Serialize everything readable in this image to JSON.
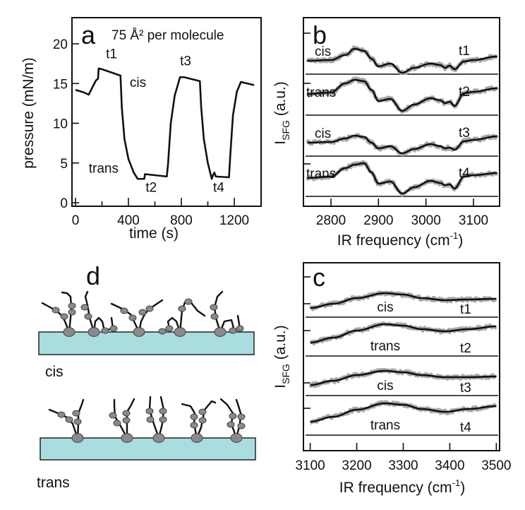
{
  "chart_data": [
    {
      "panel": "a",
      "type": "line",
      "annotation": "75 Å² per molecule",
      "xlabel": "time (s)",
      "ylabel": "pressure (mN/m)",
      "xlim": [
        0,
        1400
      ],
      "ylim": [
        0,
        23.3
      ],
      "xticks": [
        0,
        400,
        800,
        1200
      ],
      "xminor": [
        200,
        600,
        1000
      ],
      "yticks": [
        0,
        5,
        10,
        15,
        20
      ],
      "grid": false,
      "x": [
        0,
        60,
        100,
        130,
        155,
        170,
        175,
        200,
        340,
        350,
        370,
        400,
        440,
        470,
        520,
        525,
        690,
        700,
        720,
        750,
        790,
        820,
        940,
        950,
        970,
        1000,
        1030,
        1040,
        1050,
        1060,
        1160,
        1170,
        1190,
        1220,
        1250,
        1350
      ],
      "y": [
        14.2,
        13.9,
        13.6,
        14.6,
        15.4,
        15.6,
        16.9,
        16.8,
        16.0,
        12,
        8,
        5.5,
        3.8,
        3.0,
        3.0,
        3.6,
        3.3,
        5,
        10,
        13.5,
        15.8,
        15.8,
        15.3,
        12,
        8,
        5,
        3.0,
        3.5,
        3.8,
        3.3,
        3.2,
        6,
        11,
        14,
        15.2,
        14.8
      ],
      "labels": [
        {
          "text": "t1",
          "x": 230,
          "y": 18.2
        },
        {
          "text": "cis",
          "x": 410,
          "y": 14.6
        },
        {
          "text": "t3",
          "x": 790,
          "y": 17.3
        },
        {
          "text": "trans",
          "x": 100,
          "y": 3.8
        },
        {
          "text": "t2",
          "x": 530,
          "y": 1.4
        },
        {
          "text": "t4",
          "x": 1040,
          "y": 1.4
        }
      ]
    },
    {
      "panel": "b",
      "type": "line",
      "xlabel": "IR frequency (cm",
      "xlabel_sup": "-1",
      "ylabel": "I",
      "ylabel_sub": "SFG",
      "ylabel_unit": " (a.u.)",
      "xlim": [
        2742,
        3155
      ],
      "xticks": [
        2800,
        2900,
        3000,
        3100
      ],
      "grid": false,
      "x": [
        2750,
        2800,
        2830,
        2850,
        2870,
        2885,
        2900,
        2925,
        2950,
        2975,
        3010,
        3030,
        3040,
        3050,
        3060,
        3080,
        3100,
        3150
      ],
      "series": [
        {
          "state": "cis",
          "time": "t1",
          "values": [
            19,
            20,
            27,
            36,
            33,
            22,
            11,
            15,
            2,
            9,
            15,
            13,
            9,
            12,
            7,
            18,
            20,
            25
          ]
        },
        {
          "state": "trans",
          "time": "t2",
          "values": [
            30,
            32,
            45,
            50,
            48,
            36,
            20,
            23,
            6,
            15,
            24,
            21,
            17,
            19,
            13,
            31,
            33,
            38
          ]
        },
        {
          "state": "cis",
          "time": "t3",
          "values": [
            19,
            20,
            25,
            29,
            27,
            19,
            11,
            14,
            4,
            10,
            17,
            14,
            11,
            12,
            9,
            21,
            23,
            28
          ]
        },
        {
          "state": "trans",
          "time": "t4",
          "values": [
            26,
            28,
            40,
            45,
            47,
            34,
            18,
            21,
            4,
            13,
            22,
            19,
            16,
            17,
            11,
            28,
            30,
            33
          ]
        }
      ]
    },
    {
      "panel": "c",
      "type": "line",
      "xlabel": "IR frequency (cm",
      "xlabel_sup": "-1",
      "ylabel": "I",
      "ylabel_sub": "SFG",
      "ylabel_unit": " (a.u.)",
      "xlim": [
        3093,
        3504
      ],
      "xticks": [
        3100,
        3200,
        3300,
        3400,
        3500
      ],
      "grid": false,
      "x": [
        3100,
        3150,
        3200,
        3260,
        3300,
        3340,
        3390,
        3440,
        3500
      ],
      "series": [
        {
          "state": "cis",
          "time": "t1",
          "values": [
            13,
            19,
            27,
            34,
            32,
            27,
            24,
            25,
            26
          ]
        },
        {
          "state": "trans",
          "time": "t2",
          "values": [
            19,
            26,
            36,
            45,
            43,
            38,
            35,
            38,
            42
          ]
        },
        {
          "state": "cis",
          "time": "t3",
          "values": [
            15,
            21,
            29,
            35,
            33,
            29,
            26,
            26,
            27
          ]
        },
        {
          "state": "trans",
          "time": "t4",
          "values": [
            19,
            26,
            36,
            45,
            43,
            37,
            33,
            37,
            41
          ]
        }
      ]
    }
  ],
  "panel_labels": {
    "a": "a",
    "b": "b",
    "c": "c",
    "d": "d"
  },
  "diagram_d": {
    "top_state": "cis",
    "bottom_state": "trans",
    "substrate_color": "#a9dde0",
    "bead_color": "#8a8a8a"
  },
  "colors": {
    "fit": "#111111",
    "raw_data": "#aaaaaa"
  }
}
